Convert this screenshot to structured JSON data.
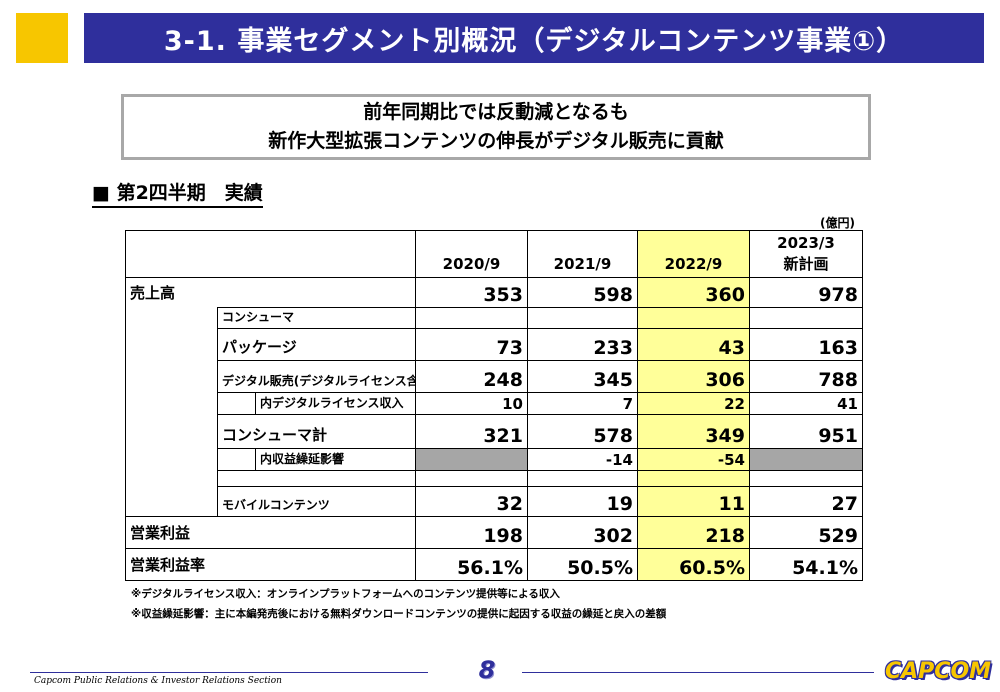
{
  "header": {
    "title": "3-1.  事業セグメント別概況（デジタルコンテンツ事業①）"
  },
  "summary": {
    "line1": "前年同期比では反動減となるも",
    "line2": "新作大型拡張コンテンツの伸長がデジタル販売に貢献"
  },
  "section": {
    "heading": "■ 第2四半期　実績"
  },
  "table": {
    "unit": "(億円)",
    "columns": {
      "c1": "2020/9",
      "c2": "2021/9",
      "c3": "2022/9",
      "c4_line1": "2023/3",
      "c4_line2": "新計画"
    },
    "rows": {
      "sales": {
        "label": "売上高",
        "v1": "353",
        "v2": "598",
        "v3": "360",
        "v4": "978"
      },
      "consumer": {
        "label": "コンシューマ"
      },
      "package": {
        "label": "パッケージ",
        "v1": "73",
        "v2": "233",
        "v3": "43",
        "v4": "163"
      },
      "digital": {
        "label": "デジタル販売(デジタルライセンス含む)",
        "v1": "248",
        "v2": "345",
        "v3": "306",
        "v4": "788"
      },
      "license": {
        "label": "内デジタルライセンス収入",
        "v1": "10",
        "v2": "7",
        "v3": "22",
        "v4": "41"
      },
      "consumer_total": {
        "label": "コンシューマ計",
        "v1": "321",
        "v2": "578",
        "v3": "349",
        "v4": "951"
      },
      "deferral": {
        "label": "内収益繰延影響",
        "v2": "-14",
        "v3": "-54"
      },
      "mobile": {
        "label": "モバイルコンテンツ",
        "v1": "32",
        "v2": "19",
        "v3": "11",
        "v4": "27"
      },
      "op_income": {
        "label": "営業利益",
        "v1": "198",
        "v2": "302",
        "v3": "218",
        "v4": "529"
      },
      "op_margin": {
        "label": "営業利益率",
        "v1": "56.1%",
        "v2": "50.5%",
        "v3": "60.5%",
        "v4": "54.1%"
      }
    }
  },
  "footnotes": {
    "note1": "※デジタルライセンス収入：オンラインプラットフォームへのコンテンツ提供等による収入",
    "note2": "※収益繰延影響：主に本編発売後における無料ダウンロードコンテンツの提供に起因する収益の繰延と戻入の差額"
  },
  "footer": {
    "department": "Capcom Public Relations & Investor Relations Section",
    "page": "8",
    "logo": "CAPCOM"
  },
  "colors": {
    "brand_blue": "#2f2f9c",
    "accent_yellow": "#f7c600",
    "highlight": "#ffff99",
    "gray_cell": "#a6a6a6"
  }
}
